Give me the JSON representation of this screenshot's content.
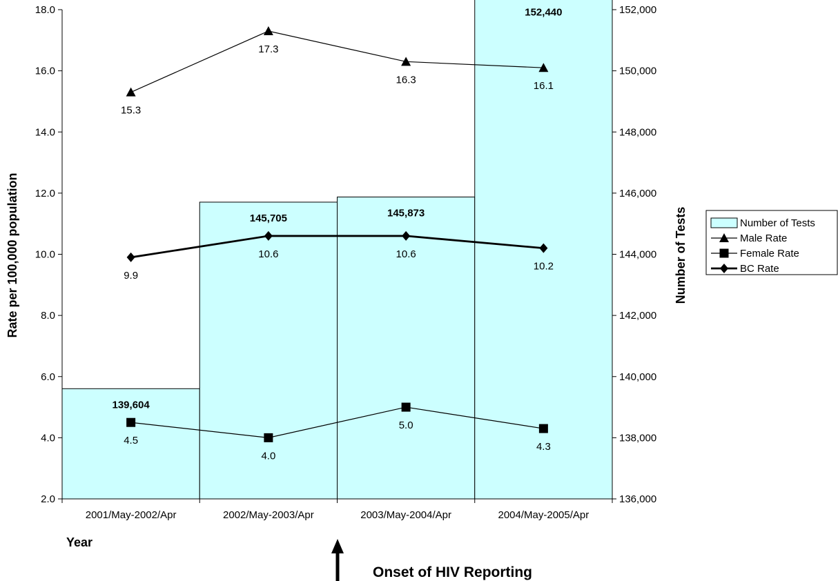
{
  "chart_data": {
    "type": "bar",
    "categories": [
      "2001/May-2002/Apr",
      "2002/May-2003/Apr",
      "2003/May-2004/Apr",
      "2004/May-2005/Apr"
    ],
    "xlabel": "Year",
    "ylabel": "Rate per 100,000 population",
    "y2label": "Number of Tests",
    "ylim": [
      2.0,
      18.0
    ],
    "y2lim": [
      136000,
      152000
    ],
    "yticks": [
      "2.0",
      "4.0",
      "6.0",
      "8.0",
      "10.0",
      "12.0",
      "14.0",
      "16.0",
      "18.0"
    ],
    "y2ticks": [
      "136,000",
      "138,000",
      "140,000",
      "142,000",
      "144,000",
      "146,000",
      "148,000",
      "150,000",
      "152,000"
    ],
    "grid": false,
    "legend_position": "right",
    "bar_series": {
      "name": "Number of Tests",
      "axis": "right",
      "values": [
        139604,
        145705,
        145873,
        152440
      ],
      "labels": [
        "139,604",
        "145,705",
        "145,873",
        "152,440"
      ],
      "color": "#ccffff"
    },
    "line_series": [
      {
        "name": "Male Rate",
        "marker": "triangle",
        "values": [
          15.3,
          17.3,
          16.3,
          16.1
        ],
        "labels": [
          "15.3",
          "17.3",
          "16.3",
          "16.1"
        ],
        "label_position": "below",
        "stroke_width": 1.2
      },
      {
        "name": "Female Rate",
        "marker": "square",
        "values": [
          4.5,
          4.0,
          5.0,
          4.3
        ],
        "labels": [
          "4.5",
          "4.0",
          "5.0",
          "4.3"
        ],
        "label_position": "below",
        "stroke_width": 1.2
      },
      {
        "name": "BC Rate",
        "marker": "diamond",
        "values": [
          9.9,
          10.6,
          10.6,
          10.2
        ],
        "labels": [
          "9.9",
          "10.6",
          "10.6",
          "10.2"
        ],
        "label_position": "below",
        "stroke_width": 2.8
      }
    ],
    "annotation": {
      "text": "Onset of HIV Reporting",
      "target_category_boundary": 2
    }
  }
}
